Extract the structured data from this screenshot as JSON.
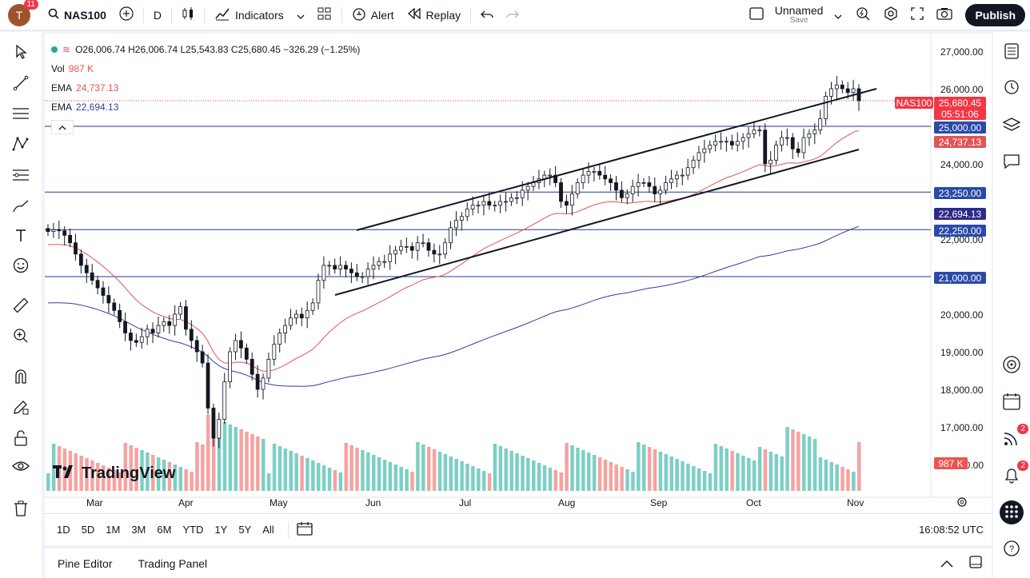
{
  "topbar": {
    "avatar_letter": "T",
    "notif_count": "11",
    "symbol": "NAS100",
    "interval": "D",
    "indicators_label": "Indicators",
    "alert_label": "Alert",
    "replay_label": "Replay",
    "layout_name": "Unnamed",
    "save_label": "Save",
    "publish_label": "Publish"
  },
  "legend": {
    "ohlc": "O26,006.74 H26,006.74 L25,543.83 C25,680.45 −326.29 (−1.25%)",
    "vol_label": "Vol",
    "vol_value": "987 K",
    "ema1_label": "EMA",
    "ema1_value": "24,737.13",
    "ema2_label": "EMA",
    "ema2_value": "22,694.13"
  },
  "price_axis": [
    "27,000.00",
    "26,000.00",
    "24,000.00",
    "22,000.00",
    "20,000.00",
    "19,000.00",
    "18,000.00",
    "17,000.00",
    "00.00"
  ],
  "tags": {
    "symbol": "NAS100",
    "last": "25,680.45",
    "countdown": "05:51:06",
    "lvl_25000": "25,000.00",
    "ema1": "24,737.13",
    "lvl_23250": "23,250.00",
    "ema2": "22,694.13",
    "lvl_22250": "22,250.00",
    "lvl_21000": "21,000.00",
    "vol": "987 K"
  },
  "months": [
    "Mar",
    "Apr",
    "May",
    "Jun",
    "Jul",
    "Aug",
    "Sep",
    "Oct",
    "Nov"
  ],
  "ranges": [
    "1D",
    "5D",
    "1M",
    "3M",
    "6M",
    "YTD",
    "1Y",
    "5Y",
    "All"
  ],
  "time": "16:08:52 UTC",
  "panel": {
    "pine": "Pine Editor",
    "trading": "Trading Panel"
  },
  "logo_text": "TradingView",
  "right_badges": {
    "ideas": "2",
    "alerts": "2"
  },
  "colors": {
    "up": "#26a69a",
    "down": "#ef5350",
    "ema1": "#e05555",
    "ema2": "#3a3aa0",
    "level": "#1e3a8a",
    "accent": "#2962ff"
  },
  "chart_data": {
    "type": "candlestick",
    "ema1_last": 24737.13,
    "ema2_last": 22694.13,
    "levels": [
      25000,
      23250,
      22250,
      21000
    ],
    "closes": [
      22200,
      22250,
      22220,
      22100,
      21900,
      21600,
      21300,
      21100,
      20900,
      20700,
      20500,
      20300,
      20100,
      19800,
      19500,
      19300,
      19250,
      19400,
      19600,
      19500,
      19700,
      19800,
      19700,
      20000,
      20200,
      19600,
      19300,
      19000,
      18700,
      17500,
      16700,
      17200,
      18200,
      19000,
      19300,
      19100,
      18800,
      18400,
      18000,
      18300,
      18800,
      19200,
      19500,
      19700,
      19900,
      20000,
      19900,
      20100,
      20300,
      20900,
      21300,
      21300,
      21200,
      21300,
      21200,
      21100,
      21000,
      21000,
      21200,
      21300,
      21400,
      21400,
      21600,
      21700,
      21800,
      21800,
      21700,
      21900,
      21900,
      21700,
      21600,
      21600,
      21900,
      22300,
      22500,
      22600,
      22800,
      22900,
      22900,
      23000,
      22900,
      22900,
      23000,
      23000,
      23100,
      23100,
      23300,
      23400,
      23500,
      23600,
      23700,
      23700,
      23500,
      23000,
      22900,
      23200,
      23500,
      23700,
      23800,
      23800,
      23700,
      23600,
      23500,
      23300,
      23100,
      23200,
      23400,
      23500,
      23500,
      23400,
      23200,
      23300,
      23500,
      23600,
      23700,
      23700,
      23900,
      24100,
      24300,
      24400,
      24500,
      24600,
      24600,
      24600,
      24500,
      24600,
      24700,
      24800,
      24900,
      24900,
      24000,
      24100,
      24500,
      24700,
      24700,
      24400,
      24300,
      24700,
      24800,
      24900,
      25200,
      25800,
      26000,
      26100,
      26000,
      25900,
      26000,
      25680
    ]
  }
}
